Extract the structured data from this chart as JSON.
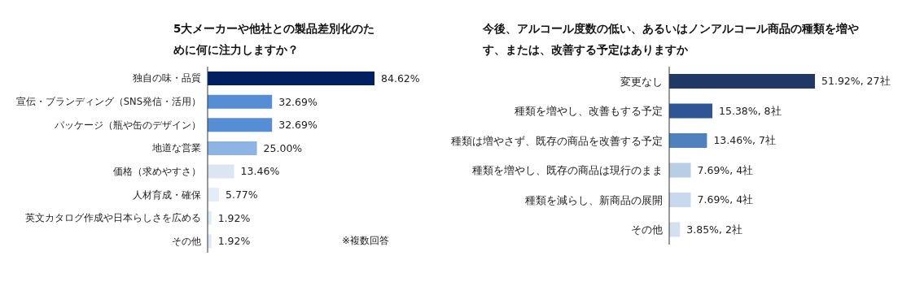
{
  "chart_data": [
    {
      "type": "bar",
      "orientation": "horizontal",
      "title": "5大メーカーや他社との製品差別化のために何に注力しますか？",
      "categories": [
        "独自の味・品質",
        "宣伝・ブランディング（SNS発信・活用）",
        "パッケージ（瓶や缶のデザイン）",
        "地道な営業",
        "価格（求めやすさ）",
        "人材育成・確保",
        "英文カタログ作成や日本らしさを広める",
        "その他"
      ],
      "values": [
        84.62,
        32.69,
        32.69,
        25.0,
        13.46,
        5.77,
        1.92,
        1.92
      ],
      "value_labels": [
        "84.62%",
        "32.69%",
        "32.69%",
        "25.00%",
        "13.46%",
        "5.77%",
        "1.92%",
        "1.92%"
      ],
      "colors": [
        "#002060",
        "#558ed5",
        "#558ed5",
        "#8eb4e3",
        "#dce6f2",
        "#e4ecf5",
        "#d9ecf0",
        "#dde8f3"
      ],
      "tick_labels": "y",
      "annotations": [
        "※複数回答"
      ]
    },
    {
      "type": "bar",
      "orientation": "horizontal",
      "title": "今後、アルコール度数の低い、あるいはノンアルコール商品の種類を増やす、または、改善する予定はありますか",
      "categories": [
        "変更なし",
        "種類を増やし、改善もする予定",
        "種類は増やさず、既存の商品を改善する予定",
        "種類を増やし、既存の商品は現行のまま",
        "種類を減らし、新商品の展開",
        "その他"
      ],
      "values": [
        51.92,
        15.38,
        13.46,
        7.69,
        7.69,
        3.85
      ],
      "value_labels": [
        "51.92%, 27社",
        "15.38%, 8社",
        "13.46%, 7社",
        "7.69%, 4社",
        "7.69%, 4社",
        "3.85%, 2社"
      ],
      "colors": [
        "#1f3864",
        "#2f5597",
        "#4f81bd",
        "#b9cde5",
        "#c9d8ec",
        "#d5e0ee"
      ],
      "tick_labels": "y"
    }
  ]
}
